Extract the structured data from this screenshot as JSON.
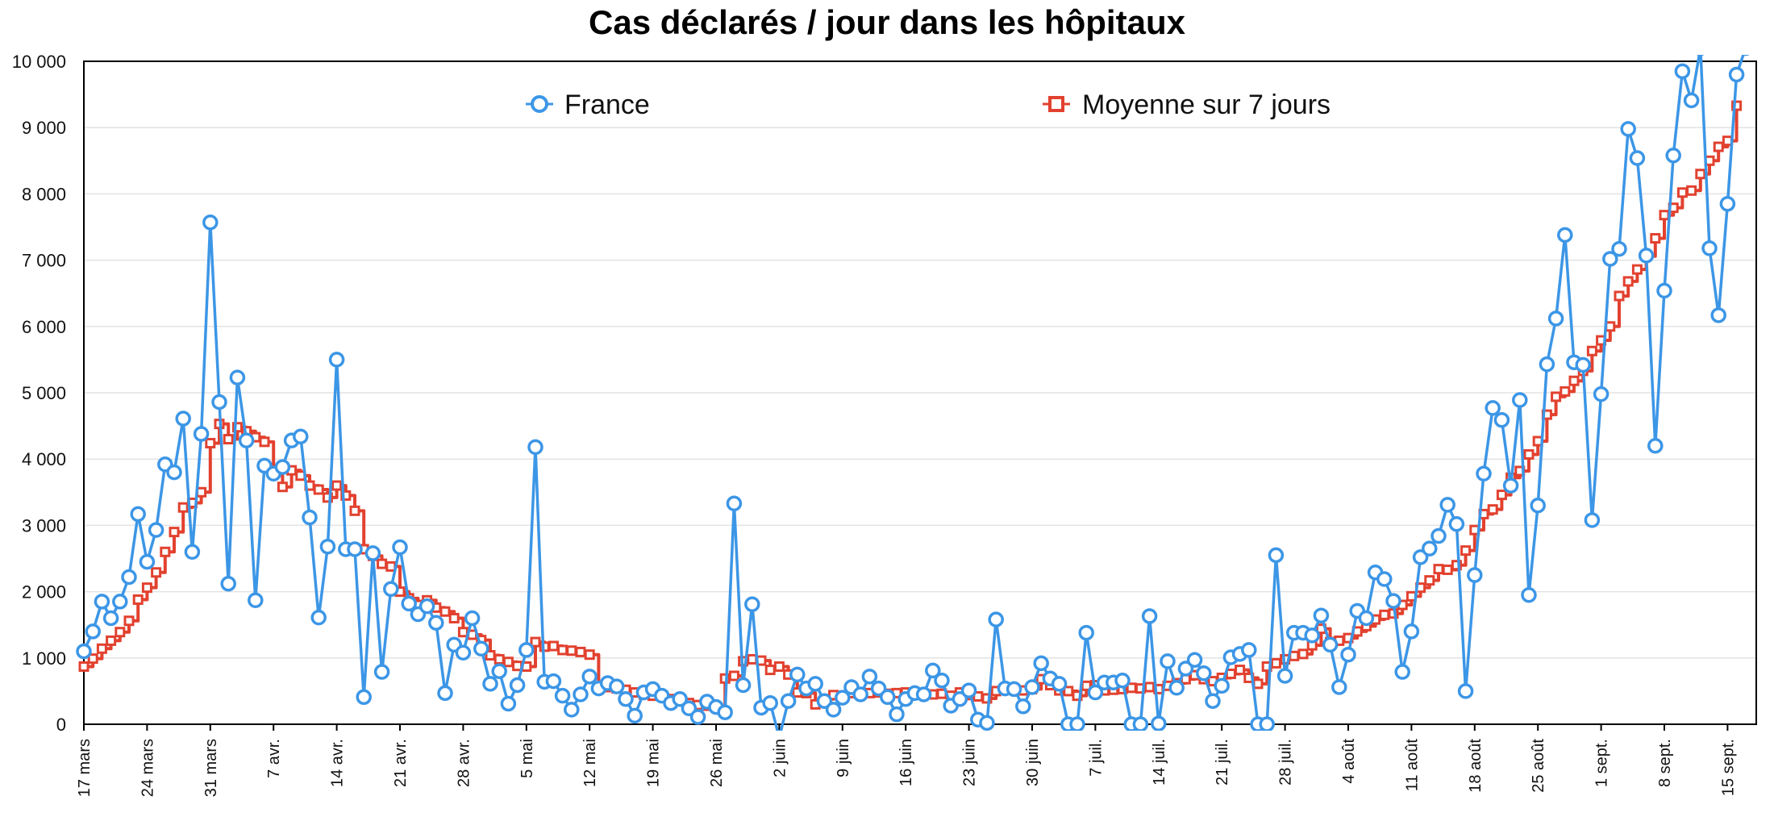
{
  "chart_data": {
    "type": "line",
    "title": "Cas déclarés / jour dans les hôpitaux",
    "xlabel": "",
    "ylabel": "",
    "ylim": [
      0,
      10000
    ],
    "y_ticks": [
      "0",
      "1 000",
      "2 000",
      "3 000",
      "4 000",
      "5 000",
      "6 000",
      "7 000",
      "8 000",
      "9 000",
      "10 000"
    ],
    "x_start_label": "17 mars",
    "x_ticks": [
      "17 mars",
      "24 mars",
      "31 mars",
      "7 avr.",
      "14 avr.",
      "21 avr.",
      "28 avr.",
      "5 mai",
      "12 mai",
      "19 mai",
      "26 mai",
      "2 juin",
      "9 juin",
      "16 juin",
      "23 juin",
      "30 juin",
      "7 juil.",
      "14 juil.",
      "21 juil.",
      "28 juil.",
      "4 août",
      "11 août",
      "18 août",
      "25 août",
      "1 sept.",
      "8 sept.",
      "15 sept."
    ],
    "grid": true,
    "legend_position": "top",
    "series": [
      {
        "name": "France",
        "color": "#3c96e6",
        "marker": "circle",
        "values": [
          1100,
          1400,
          1850,
          1600,
          1850,
          2220,
          3170,
          2450,
          2930,
          3920,
          3800,
          4610,
          2600,
          4380,
          7570,
          4860,
          2120,
          5230,
          4280,
          1870,
          3900,
          3780,
          3880,
          4280,
          4340,
          3120,
          1610,
          2680,
          5500,
          2640,
          2640,
          410,
          2580,
          790,
          2040,
          2670,
          1820,
          1660,
          1780,
          1530,
          470,
          1200,
          1080,
          1600,
          1140,
          610,
          800,
          310,
          590,
          1120,
          4180,
          640,
          650,
          430,
          220,
          450,
          720,
          540,
          620,
          570,
          380,
          130,
          480,
          530,
          430,
          320,
          380,
          240,
          110,
          340,
          260,
          180,
          3330,
          590,
          1810,
          250,
          320,
          -200,
          350,
          750,
          540,
          610,
          350,
          220,
          400,
          560,
          450,
          720,
          540,
          410,
          150,
          380,
          470,
          450,
          810,
          660,
          280,
          380,
          510,
          70,
          20,
          1580,
          540,
          530,
          270,
          560,
          920,
          690,
          610,
          0,
          0,
          1380,
          480,
          630,
          630,
          660,
          0,
          0,
          1630,
          10,
          950,
          550,
          840,
          970,
          770,
          350,
          580,
          1010,
          1060,
          1120,
          0,
          0,
          2550,
          730,
          1380,
          1380,
          1340,
          1640,
          1200,
          560,
          1050,
          1710,
          1600,
          2290,
          2190,
          1860,
          790,
          1400,
          2520,
          2650,
          2840,
          3310,
          3020,
          500,
          2250,
          3780,
          4770,
          4590,
          3600,
          4890,
          1950,
          3300,
          5430,
          6120,
          7380,
          5460,
          5420,
          3080,
          4980,
          7020,
          7170,
          8980,
          8540,
          7070,
          4200,
          6540,
          8580,
          9850,
          9410,
          10200,
          7180,
          6170,
          7850,
          9800,
          10200
        ]
      },
      {
        "name": "Moyenne sur 7 jours",
        "color": "#e2412f",
        "marker": "square",
        "values": [
          870,
          990,
          1140,
          1260,
          1390,
          1560,
          1880,
          2060,
          2290,
          2600,
          2900,
          3270,
          3340,
          3500,
          4240,
          4530,
          4300,
          4480,
          4420,
          4330,
          4260,
          3850,
          3580,
          3830,
          3750,
          3600,
          3540,
          3420,
          3600,
          3450,
          3220,
          2640,
          2540,
          2420,
          2380,
          2000,
          1900,
          1800,
          1870,
          1760,
          1700,
          1600,
          1390,
          1350,
          1270,
          1040,
          980,
          940,
          880,
          870,
          1240,
          1170,
          1180,
          1120,
          1110,
          1090,
          1050,
          560,
          560,
          540,
          520,
          480,
          450,
          430,
          420,
          380,
          360,
          320,
          290,
          280,
          260,
          690,
          730,
          950,
          980,
          960,
          820,
          870,
          750,
          480,
          470,
          300,
          380,
          440,
          430,
          470,
          460,
          470,
          480,
          460,
          470,
          480,
          470,
          460,
          450,
          460,
          430,
          480,
          440,
          420,
          390,
          500,
          540,
          520,
          510,
          530,
          680,
          590,
          510,
          500,
          430,
          580,
          590,
          510,
          520,
          530,
          550,
          540,
          560,
          530,
          580,
          620,
          680,
          740,
          680,
          650,
          700,
          760,
          820,
          700,
          610,
          870,
          920,
          980,
          1030,
          1060,
          1190,
          1440,
          1240,
          1260,
          1300,
          1400,
          1480,
          1580,
          1650,
          1670,
          1800,
          1930,
          2060,
          2170,
          2340,
          2330,
          2400,
          2620,
          2930,
          3170,
          3240,
          3460,
          3720,
          3820,
          4070,
          4270,
          4670,
          4940,
          5020,
          5180,
          5330,
          5630,
          5790,
          6000,
          6460,
          6680,
          6860,
          7060,
          7330,
          7680,
          7790,
          8020,
          8050,
          8300,
          8500,
          8710,
          8800,
          9330
        ]
      }
    ]
  }
}
